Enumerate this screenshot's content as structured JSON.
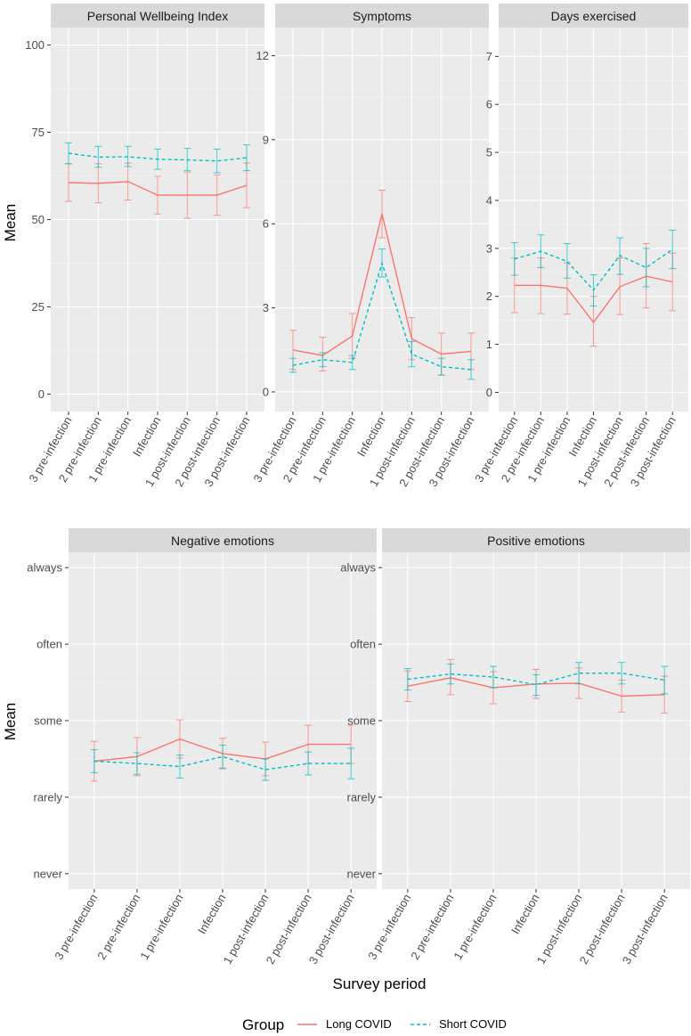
{
  "chart_data": [
    {
      "type": "line",
      "facet": "Personal Wellbeing Index",
      "ylabel": "Mean",
      "ylim": [
        -5,
        105
      ],
      "yticks": [
        0,
        25,
        50,
        75,
        100
      ],
      "ytick_labels": [
        "0",
        "25",
        "50",
        "75",
        "100"
      ],
      "categories": [
        "3 pre-infection",
        "2 pre-infection",
        "1 pre-infection",
        "Infection",
        "1 post-infection",
        "2 post-infection",
        "3 post-infection"
      ],
      "series": [
        {
          "name": "Long COVID",
          "values": [
            60.6,
            60.4,
            60.9,
            57.0,
            57.0,
            57.0,
            59.8
          ],
          "lower": [
            55.2,
            54.8,
            55.6,
            51.6,
            50.4,
            51.2,
            53.4
          ],
          "upper": [
            66.0,
            66.0,
            66.2,
            62.4,
            63.6,
            62.8,
            66.2
          ]
        },
        {
          "name": "Short COVID",
          "values": [
            69.0,
            67.9,
            68.0,
            67.3,
            67.1,
            66.8,
            67.7
          ],
          "lower": [
            66.0,
            65.0,
            65.2,
            64.4,
            64.0,
            63.4,
            64.0
          ],
          "upper": [
            72.0,
            71.0,
            71.0,
            70.2,
            70.4,
            70.2,
            71.4
          ]
        }
      ]
    },
    {
      "type": "line",
      "facet": "Symptoms",
      "ylabel": "",
      "ylim": [
        -0.7,
        13.0
      ],
      "yticks": [
        0,
        3,
        6,
        9,
        12
      ],
      "ytick_labels": [
        "0",
        "3",
        "6",
        "9",
        "12"
      ],
      "categories": [
        "3 pre-infection",
        "2 pre-infection",
        "1 pre-infection",
        "Infection",
        "1 post-infection",
        "2 post-infection",
        "3 post-infection"
      ],
      "series": [
        {
          "name": "Long COVID",
          "values": [
            1.5,
            1.3,
            2.0,
            6.35,
            1.9,
            1.35,
            1.45
          ],
          "lower": [
            0.8,
            0.75,
            1.2,
            5.5,
            1.15,
            0.6,
            0.8
          ],
          "upper": [
            2.2,
            1.95,
            2.8,
            7.2,
            2.65,
            2.1,
            2.1
          ]
        },
        {
          "name": "Short COVID",
          "values": [
            0.95,
            1.15,
            1.05,
            4.6,
            1.35,
            0.9,
            0.8
          ],
          "lower": [
            0.7,
            0.9,
            0.8,
            4.1,
            0.9,
            0.6,
            0.45
          ],
          "upper": [
            1.2,
            1.4,
            1.3,
            5.1,
            1.8,
            1.2,
            1.15
          ]
        }
      ]
    },
    {
      "type": "line",
      "facet": "Days exercised",
      "ylabel": "",
      "ylim": [
        -0.4,
        7.6
      ],
      "yticks": [
        0,
        1,
        2,
        3,
        4,
        5,
        6,
        7
      ],
      "ytick_labels": [
        "0",
        "1",
        "2",
        "3",
        "4",
        "5",
        "6",
        "7"
      ],
      "categories": [
        "3 pre-infection",
        "2 pre-infection",
        "1 pre-infection",
        "Infection",
        "1 post-infection",
        "2 post-infection",
        "3 post-infection"
      ],
      "series": [
        {
          "name": "Long COVID",
          "values": [
            2.23,
            2.23,
            2.17,
            1.46,
            2.2,
            2.42,
            2.3
          ],
          "lower": [
            1.66,
            1.64,
            1.63,
            0.96,
            1.62,
            1.76,
            1.7
          ],
          "upper": [
            2.8,
            2.8,
            2.7,
            2.0,
            2.8,
            3.1,
            2.9
          ]
        },
        {
          "name": "Short COVID",
          "values": [
            2.78,
            2.94,
            2.73,
            2.13,
            2.85,
            2.6,
            2.98
          ],
          "lower": [
            2.44,
            2.6,
            2.38,
            1.8,
            2.46,
            2.2,
            2.58
          ],
          "upper": [
            3.12,
            3.28,
            3.1,
            2.45,
            3.22,
            3.0,
            3.38
          ]
        }
      ]
    },
    {
      "type": "line",
      "facet": "Negative emotions",
      "ylabel": "Mean",
      "ylim": [
        0.8,
        5.2
      ],
      "yticks": [
        1,
        2,
        3,
        4,
        5
      ],
      "ytick_labels": [
        "never",
        "rarely",
        "some",
        "often",
        "always"
      ],
      "categories": [
        "3 pre-infection",
        "2 pre-infection",
        "1 pre-infection",
        "Infection",
        "1 post-infection",
        "2 post-infection",
        "3 post-infection"
      ],
      "series": [
        {
          "name": "Long COVID",
          "values": [
            2.47,
            2.53,
            2.76,
            2.57,
            2.5,
            2.69,
            2.69
          ],
          "lower": [
            2.21,
            2.28,
            2.51,
            2.37,
            2.28,
            2.44,
            2.44
          ],
          "upper": [
            2.73,
            2.78,
            3.01,
            2.77,
            2.72,
            2.94,
            2.94
          ]
        },
        {
          "name": "Short COVID",
          "values": [
            2.47,
            2.44,
            2.4,
            2.53,
            2.36,
            2.44,
            2.44
          ],
          "lower": [
            2.32,
            2.3,
            2.25,
            2.38,
            2.22,
            2.29,
            2.24
          ],
          "upper": [
            2.62,
            2.58,
            2.55,
            2.68,
            2.5,
            2.59,
            2.64
          ]
        }
      ]
    },
    {
      "type": "line",
      "facet": "Positive emotions",
      "ylabel": "",
      "ylim": [
        0.8,
        5.2
      ],
      "yticks": [
        1,
        2,
        3,
        4,
        5
      ],
      "ytick_labels": [
        "never",
        "rarely",
        "some",
        "often",
        "always"
      ],
      "categories": [
        "3 pre-infection",
        "2 pre-infection",
        "1 pre-infection",
        "Infection",
        "1 post-infection",
        "2 post-infection",
        "3 post-infection"
      ],
      "series": [
        {
          "name": "Long COVID",
          "values": [
            3.45,
            3.56,
            3.43,
            3.48,
            3.49,
            3.32,
            3.34
          ],
          "lower": [
            3.25,
            3.34,
            3.22,
            3.29,
            3.29,
            3.11,
            3.1
          ],
          "upper": [
            3.65,
            3.8,
            3.64,
            3.67,
            3.69,
            3.53,
            3.58
          ]
        },
        {
          "name": "Short COVID",
          "values": [
            3.54,
            3.61,
            3.57,
            3.47,
            3.62,
            3.62,
            3.53
          ],
          "lower": [
            3.4,
            3.48,
            3.43,
            3.33,
            3.48,
            3.48,
            3.35
          ],
          "upper": [
            3.68,
            3.74,
            3.71,
            3.6,
            3.76,
            3.76,
            3.71
          ]
        }
      ]
    }
  ],
  "xlabel": "Survey period",
  "legend": {
    "title": "Group",
    "items": [
      {
        "name": "Long COVID",
        "color": "#F8766D",
        "dash": "solid"
      },
      {
        "name": "Short COVID",
        "color": "#00BFC4",
        "dash": "dashed"
      }
    ]
  },
  "colors": {
    "panel_bg": "#EBEBEB",
    "strip_bg": "#D9D9D9",
    "grid_major": "#FFFFFF",
    "long_covid": "#F8766D",
    "short_covid": "#00BFC4"
  }
}
